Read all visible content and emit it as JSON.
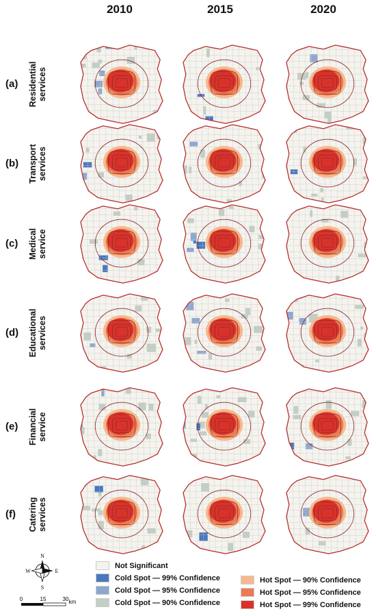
{
  "years": [
    "2010",
    "2015",
    "2020"
  ],
  "rows": [
    {
      "letter": "(a)",
      "label_line1": "Residential",
      "label_line2": "services"
    },
    {
      "letter": "(b)",
      "label_line1": "Transport",
      "label_line2": "services"
    },
    {
      "letter": "(c)",
      "label_line1": "Medical",
      "label_line2": "service"
    },
    {
      "letter": "(d)",
      "label_line1": "Educational",
      "label_line2": "services"
    },
    {
      "letter": "(e)",
      "label_line1": "Financial",
      "label_line2": "service"
    },
    {
      "letter": "(f)",
      "label_line1": "Catering",
      "label_line2": "services"
    }
  ],
  "legend": [
    {
      "label": "Not Significant",
      "color": "#f4f3ee"
    },
    {
      "label": "Cold Spot — 99% Confidence",
      "color": "#4a78bd"
    },
    {
      "label": "Cold Spot — 95% Confidence",
      "color": "#8ea7cf"
    },
    {
      "label": "Cold Spot — 90% Confidence",
      "color": "#c3cec4"
    },
    {
      "label": "Hot Spot — 90% Confidence",
      "color": "#f6b98e"
    },
    {
      "label": "Hot Spot — 95% Confidence",
      "color": "#ec7a52"
    },
    {
      "label": "Hot Spot — 99% Confidence",
      "color": "#d8322a"
    }
  ],
  "compass": {
    "n": "N",
    "s": "S",
    "e": "E",
    "w": "W"
  },
  "scale": {
    "ticks": [
      "0",
      "15",
      "30"
    ],
    "unit": "km"
  },
  "colors": {
    "boundary": "#b52a2a",
    "ring": "#8a2a2a",
    "district_line": "#c9c9c9"
  }
}
